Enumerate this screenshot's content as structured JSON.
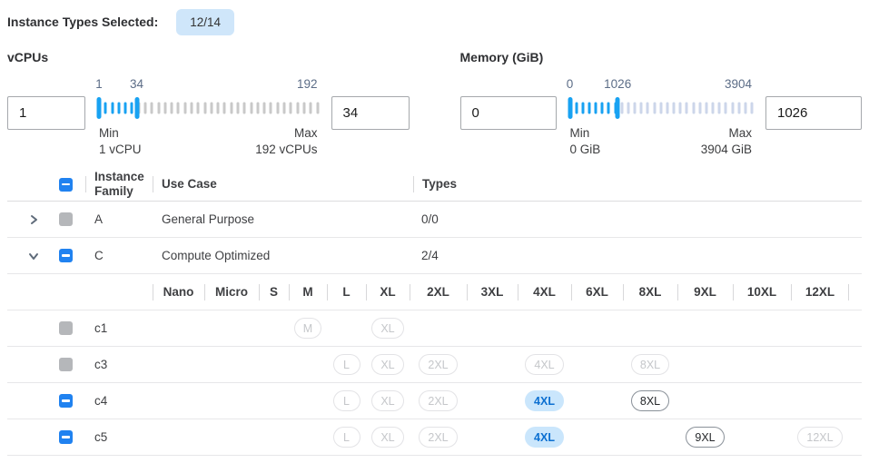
{
  "header": {
    "label": "Instance Types Selected:",
    "badge": "12/14"
  },
  "filters": [
    {
      "id": "vcpus",
      "label": "vCPUs",
      "low_value": "1",
      "high_value": "34",
      "range": {
        "min": 1,
        "max": 192
      },
      "selected": {
        "low": 1,
        "high": 34
      },
      "mark_low": "1",
      "mark_high": "34",
      "mark_max": "192",
      "min_caption": "Min",
      "min_detail": "1 vCPU",
      "max_caption": "Max",
      "max_detail": "192 vCPUs",
      "off_tick_color": "#c9c9c9"
    },
    {
      "id": "memory",
      "label": "Memory (GiB)",
      "low_value": "0",
      "high_value": "1026",
      "range": {
        "min": 0,
        "max": 3904
      },
      "selected": {
        "low": 0,
        "high": 1026
      },
      "mark_low": "0",
      "mark_high": "1026",
      "mark_max": "3904",
      "min_caption": "Min",
      "min_detail": "0 GiB",
      "max_caption": "Max",
      "max_detail": "3904 GiB",
      "off_tick_color": "#ccd6ea"
    }
  ],
  "table": {
    "select_all_state": "indeterminate",
    "columns": {
      "family": "Instance Family",
      "use_case": "Use Case",
      "types": "Types"
    },
    "sizes": [
      "Nano",
      "Micro",
      "S",
      "M",
      "L",
      "XL",
      "2XL",
      "3XL",
      "4XL",
      "6XL",
      "8XL",
      "9XL",
      "10XL",
      "12XL"
    ],
    "families": [
      {
        "name": "A",
        "use_case": "General Purpose",
        "types": "0/0",
        "expanded": false,
        "checkbox": "disabled",
        "children": []
      },
      {
        "name": "C",
        "use_case": "Compute Optimized",
        "types": "2/4",
        "expanded": true,
        "checkbox": "indeterminate",
        "children": [
          {
            "name": "c1",
            "checkbox": "disabled",
            "chips": {
              "M": "disabled",
              "XL": "disabled"
            }
          },
          {
            "name": "c3",
            "checkbox": "disabled",
            "chips": {
              "L": "disabled",
              "XL": "disabled",
              "2XL": "disabled",
              "4XL": "disabled",
              "8XL": "disabled"
            }
          },
          {
            "name": "c4",
            "checkbox": "indeterminate",
            "chips": {
              "L": "disabled",
              "XL": "disabled",
              "2XL": "disabled",
              "4XL": "selected",
              "8XL": "enabled"
            }
          },
          {
            "name": "c5",
            "checkbox": "indeterminate",
            "chips": {
              "L": "disabled",
              "XL": "disabled",
              "2XL": "disabled",
              "4XL": "selected",
              "9XL": "enabled",
              "12XL": "disabled"
            }
          }
        ]
      }
    ]
  },
  "colors": {
    "accent_blue": "#2082f0",
    "slider_blue": "#18a2f2",
    "badge_bg": "#cfe6fa",
    "chip_selected_bg": "#cae6fc",
    "chip_selected_text": "#0b6fd1"
  }
}
